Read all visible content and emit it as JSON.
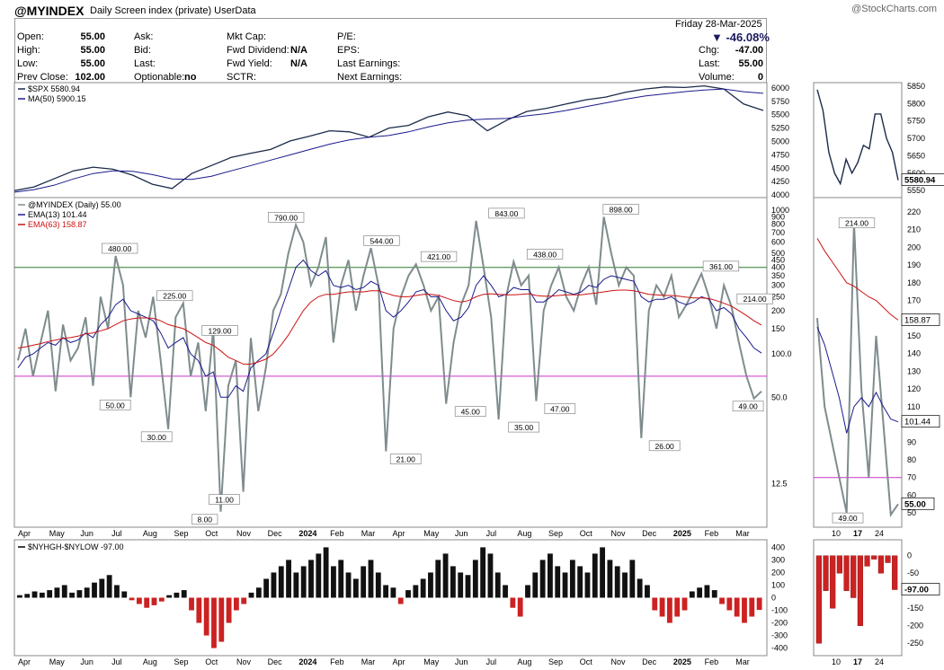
{
  "header": {
    "symbol": "@MYINDEX",
    "description": "Daily Screen index (private)  UserData",
    "watermark": "@StockCharts.com",
    "date": "Friday  28-Mar-2025",
    "pct_change": "▼ -46.08%"
  },
  "quote": {
    "col1": [
      {
        "label": "Open:",
        "value": "55.00"
      },
      {
        "label": "High:",
        "value": "55.00"
      },
      {
        "label": "Low:",
        "value": "55.00"
      },
      {
        "label": "Prev Close:",
        "value": "102.00"
      }
    ],
    "col2": [
      {
        "label": "Ask:",
        "value": ""
      },
      {
        "label": "Bid:",
        "value": ""
      },
      {
        "label": "Last:",
        "value": ""
      },
      {
        "label": "Optionable:",
        "value": "no"
      }
    ],
    "col3": [
      {
        "label": "Mkt Cap:",
        "value": ""
      },
      {
        "label": "Fwd Dividend:",
        "value": "N/A"
      },
      {
        "label": "Fwd Yield:",
        "value": "N/A"
      },
      {
        "label": "SCTR:",
        "value": ""
      }
    ],
    "col4": [
      {
        "label": "P/E:",
        "value": ""
      },
      {
        "label": "EPS:",
        "value": ""
      },
      {
        "label": "Last Earnings:",
        "value": ""
      },
      {
        "label": "Next Earnings:",
        "value": ""
      }
    ],
    "col5": [
      {
        "label": "Chg:",
        "value": "-47.00"
      },
      {
        "label": "Last:",
        "value": "55.00"
      },
      {
        "label": "Volume:",
        "value": "0"
      }
    ]
  },
  "colors": {
    "price": "#7f8c8d",
    "ema13": "#1a1a8c",
    "ema63": "#cc1111",
    "spx": "#1c2b4a",
    "green_line": "#2a7a2a",
    "magenta_line": "#cc33cc",
    "pos_bar": "#111111",
    "neg_bar": "#cc2222"
  },
  "chart_data": [
    {
      "panel": "spx",
      "type": "line",
      "legend": [
        "$SPX 5580.94",
        "MA(50) 5900.15"
      ],
      "last_label": "5580.94",
      "y_ticks": [
        "6000",
        "5750",
        "5500",
        "5250",
        "5000",
        "4750",
        "4500",
        "4250",
        "4000"
      ],
      "right_y_ticks": [
        "5850",
        "5800",
        "5750",
        "5700",
        "5650",
        "5600",
        "5550"
      ],
      "series": [
        {
          "name": "$SPX",
          "values": [
            4080,
            4150,
            4300,
            4450,
            4520,
            4480,
            4370,
            4200,
            4120,
            4400,
            4550,
            4700,
            4780,
            4850,
            5010,
            5100,
            5200,
            5180,
            5080,
            5250,
            5300,
            5460,
            5550,
            5480,
            5200,
            5400,
            5560,
            5620,
            5700,
            5780,
            5830,
            5920,
            5980,
            6020,
            6010,
            6040,
            5980,
            5700,
            5580
          ]
        },
        {
          "name": "MA(50)",
          "values": [
            4050,
            4100,
            4180,
            4300,
            4400,
            4450,
            4440,
            4380,
            4300,
            4290,
            4350,
            4450,
            4550,
            4650,
            4750,
            4850,
            4950,
            5030,
            5080,
            5110,
            5180,
            5270,
            5350,
            5400,
            5420,
            5430,
            5480,
            5520,
            5580,
            5650,
            5720,
            5790,
            5850,
            5890,
            5930,
            5960,
            5980,
            5930,
            5900
          ]
        }
      ]
    },
    {
      "panel": "main",
      "type": "line",
      "scale": "log",
      "legend": [
        "@MYINDEX (Daily) 55.00",
        "EMA(13) 101.44",
        "EMA(63) 158.87"
      ],
      "y_ticks": [
        "1000",
        "900",
        "800",
        "700",
        "600",
        "500",
        "450",
        "400",
        "350",
        "300",
        "250",
        "200",
        "150",
        "100.0",
        "50.0",
        "12.5"
      ],
      "right_y_ticks": [
        "220",
        "210",
        "200",
        "190",
        "180",
        "170",
        "160",
        "150",
        "140",
        "130",
        "120",
        "110",
        "100",
        "90",
        "80",
        "70",
        "60",
        "50"
      ],
      "right_labels": {
        "ema63": "158.87",
        "ema13": "101.44",
        "price": "55.00",
        "high": "214.00",
        "low": "49.00"
      },
      "reference_lines": [
        400,
        70
      ],
      "annotations": [
        {
          "text": "480.00",
          "x": 0.14,
          "v": 480
        },
        {
          "text": "50.00",
          "x": 0.134,
          "v": 50
        },
        {
          "text": "30.00",
          "x": 0.189,
          "v": 30
        },
        {
          "text": "225.00",
          "x": 0.213,
          "v": 225
        },
        {
          "text": "8.00",
          "x": 0.253,
          "v": 8
        },
        {
          "text": "11.00",
          "x": 0.279,
          "v": 11
        },
        {
          "text": "129.00",
          "x": 0.273,
          "v": 129
        },
        {
          "text": "790.00",
          "x": 0.361,
          "v": 790
        },
        {
          "text": "544.00",
          "x": 0.488,
          "v": 544
        },
        {
          "text": "21.00",
          "x": 0.52,
          "v": 21
        },
        {
          "text": "421.00",
          "x": 0.564,
          "v": 421
        },
        {
          "text": "45.00",
          "x": 0.606,
          "v": 45
        },
        {
          "text": "843.00",
          "x": 0.654,
          "v": 843
        },
        {
          "text": "35.00",
          "x": 0.677,
          "v": 35
        },
        {
          "text": "438.00",
          "x": 0.705,
          "v": 438
        },
        {
          "text": "47.00",
          "x": 0.725,
          "v": 47
        },
        {
          "text": "898.00",
          "x": 0.806,
          "v": 898
        },
        {
          "text": "26.00",
          "x": 0.864,
          "v": 26
        },
        {
          "text": "361.00",
          "x": 0.939,
          "v": 361
        },
        {
          "text": "214.00",
          "x": 0.984,
          "v": 214
        },
        {
          "text": "49.00",
          "x": 0.975,
          "v": 49
        }
      ],
      "series": [
        {
          "name": "@MYINDEX",
          "values": [
            90,
            150,
            70,
            120,
            200,
            55,
            160,
            90,
            110,
            180,
            60,
            250,
            150,
            480,
            300,
            50,
            200,
            130,
            250,
            90,
            30,
            180,
            225,
            70,
            120,
            40,
            150,
            8,
            60,
            90,
            11,
            129,
            40,
            80,
            200,
            260,
            500,
            790,
            600,
            300,
            400,
            650,
            120,
            300,
            450,
            200,
            350,
            544,
            300,
            21,
            150,
            250,
            350,
            421,
            300,
            200,
            250,
            45,
            120,
            220,
            300,
            843,
            400,
            180,
            35,
            250,
            438,
            300,
            350,
            47,
            200,
            300,
            400,
            250,
            200,
            300,
            400,
            220,
            898,
            500,
            300,
            400,
            350,
            26,
            200,
            300,
            250,
            350,
            180,
            220,
            280,
            361,
            250,
            150,
            300,
            214,
            120,
            70,
            49,
            55
          ]
        },
        {
          "name": "EMA(13)",
          "values": [
            80,
            95,
            100,
            110,
            120,
            115,
            130,
            120,
            125,
            140,
            130,
            160,
            180,
            220,
            240,
            200,
            190,
            180,
            170,
            140,
            110,
            120,
            130,
            100,
            90,
            70,
            75,
            50,
            50,
            60,
            55,
            80,
            90,
            100,
            140,
            200,
            280,
            400,
            450,
            380,
            350,
            380,
            300,
            290,
            300,
            280,
            290,
            320,
            300,
            200,
            180,
            200,
            230,
            270,
            280,
            250,
            250,
            200,
            170,
            180,
            210,
            300,
            350,
            300,
            250,
            260,
            290,
            280,
            280,
            230,
            230,
            250,
            280,
            270,
            260,
            270,
            300,
            290,
            330,
            350,
            340,
            330,
            320,
            250,
            230,
            240,
            240,
            250,
            230,
            220,
            230,
            250,
            240,
            200,
            210,
            190,
            150,
            130,
            110,
            101.44
          ]
        },
        {
          "name": "EMA(63)",
          "values": [
            110,
            112,
            115,
            118,
            122,
            125,
            128,
            130,
            133,
            138,
            140,
            145,
            150,
            160,
            170,
            175,
            178,
            178,
            177,
            170,
            160,
            155,
            150,
            140,
            130,
            120,
            115,
            105,
            95,
            90,
            85,
            85,
            88,
            92,
            100,
            115,
            135,
            165,
            200,
            230,
            250,
            260,
            260,
            265,
            270,
            270,
            270,
            275,
            275,
            265,
            255,
            250,
            250,
            255,
            260,
            260,
            255,
            245,
            235,
            230,
            235,
            250,
            260,
            262,
            260,
            258,
            258,
            260,
            262,
            255,
            252,
            252,
            255,
            258,
            258,
            258,
            262,
            265,
            270,
            275,
            278,
            278,
            275,
            268,
            260,
            258,
            255,
            255,
            252,
            248,
            245,
            245,
            243,
            235,
            225,
            215,
            200,
            185,
            170,
            158.87
          ]
        }
      ],
      "zoom_series": [
        {
          "name": "@MYINDEX",
          "values": [
            160,
            110,
            90,
            70,
            50,
            214,
            120,
            70,
            150,
            100,
            49,
            55
          ]
        },
        {
          "name": "EMA(13)",
          "values": [
            155,
            145,
            130,
            115,
            95,
            110,
            115,
            110,
            118,
            110,
            103,
            101.44
          ]
        },
        {
          "name": "EMA(63)",
          "values": [
            205,
            198,
            192,
            186,
            180,
            178,
            175,
            172,
            170,
            166,
            162,
            158.87
          ]
        }
      ]
    },
    {
      "panel": "nyhgh",
      "type": "bar",
      "legend": [
        "$NYHGH-$NYLOW -97.00"
      ],
      "last_label": "-97.00",
      "y_ticks": [
        "400",
        "300",
        "200",
        "100",
        "0",
        "-100",
        "-200",
        "-300",
        "-400"
      ],
      "right_y_ticks": [
        "0",
        "-50",
        "-100",
        "-150",
        "-200",
        "-250"
      ],
      "values": [
        20,
        30,
        50,
        40,
        60,
        80,
        100,
        40,
        60,
        80,
        120,
        150,
        180,
        100,
        50,
        -20,
        -50,
        -80,
        -60,
        -30,
        20,
        40,
        60,
        -100,
        -200,
        -300,
        -400,
        -350,
        -200,
        -100,
        -50,
        40,
        80,
        150,
        200,
        250,
        300,
        200,
        250,
        300,
        350,
        400,
        250,
        300,
        200,
        150,
        250,
        300,
        200,
        100,
        80,
        -50,
        60,
        100,
        150,
        200,
        300,
        350,
        250,
        200,
        180,
        300,
        400,
        350,
        200,
        100,
        -80,
        -150,
        100,
        200,
        300,
        350,
        250,
        200,
        300,
        250,
        200,
        350,
        400,
        300,
        250,
        200,
        300,
        150,
        100,
        -100,
        -150,
        -200,
        -150,
        -100,
        50,
        80,
        100,
        60,
        -50,
        -100,
        -150,
        -200,
        -150,
        -97
      ],
      "zoom_values": [
        -250,
        -100,
        -150,
        -50,
        -100,
        -120,
        -200,
        -30,
        -10,
        -50,
        -20,
        -97
      ]
    }
  ],
  "x_axis": {
    "labels": [
      "Apr",
      "May",
      "Jun",
      "Jul",
      "Aug",
      "Sep",
      "Oct",
      "Nov",
      "Dec",
      "2024",
      "Feb",
      "Mar",
      "Apr",
      "May",
      "Jun",
      "Jul",
      "Aug",
      "Sep",
      "Oct",
      "Nov",
      "Dec",
      "2025",
      "Feb",
      "Mar"
    ],
    "bold": [
      "2024",
      "2025"
    ],
    "zoom_labels": [
      "10",
      "17",
      "24"
    ]
  }
}
